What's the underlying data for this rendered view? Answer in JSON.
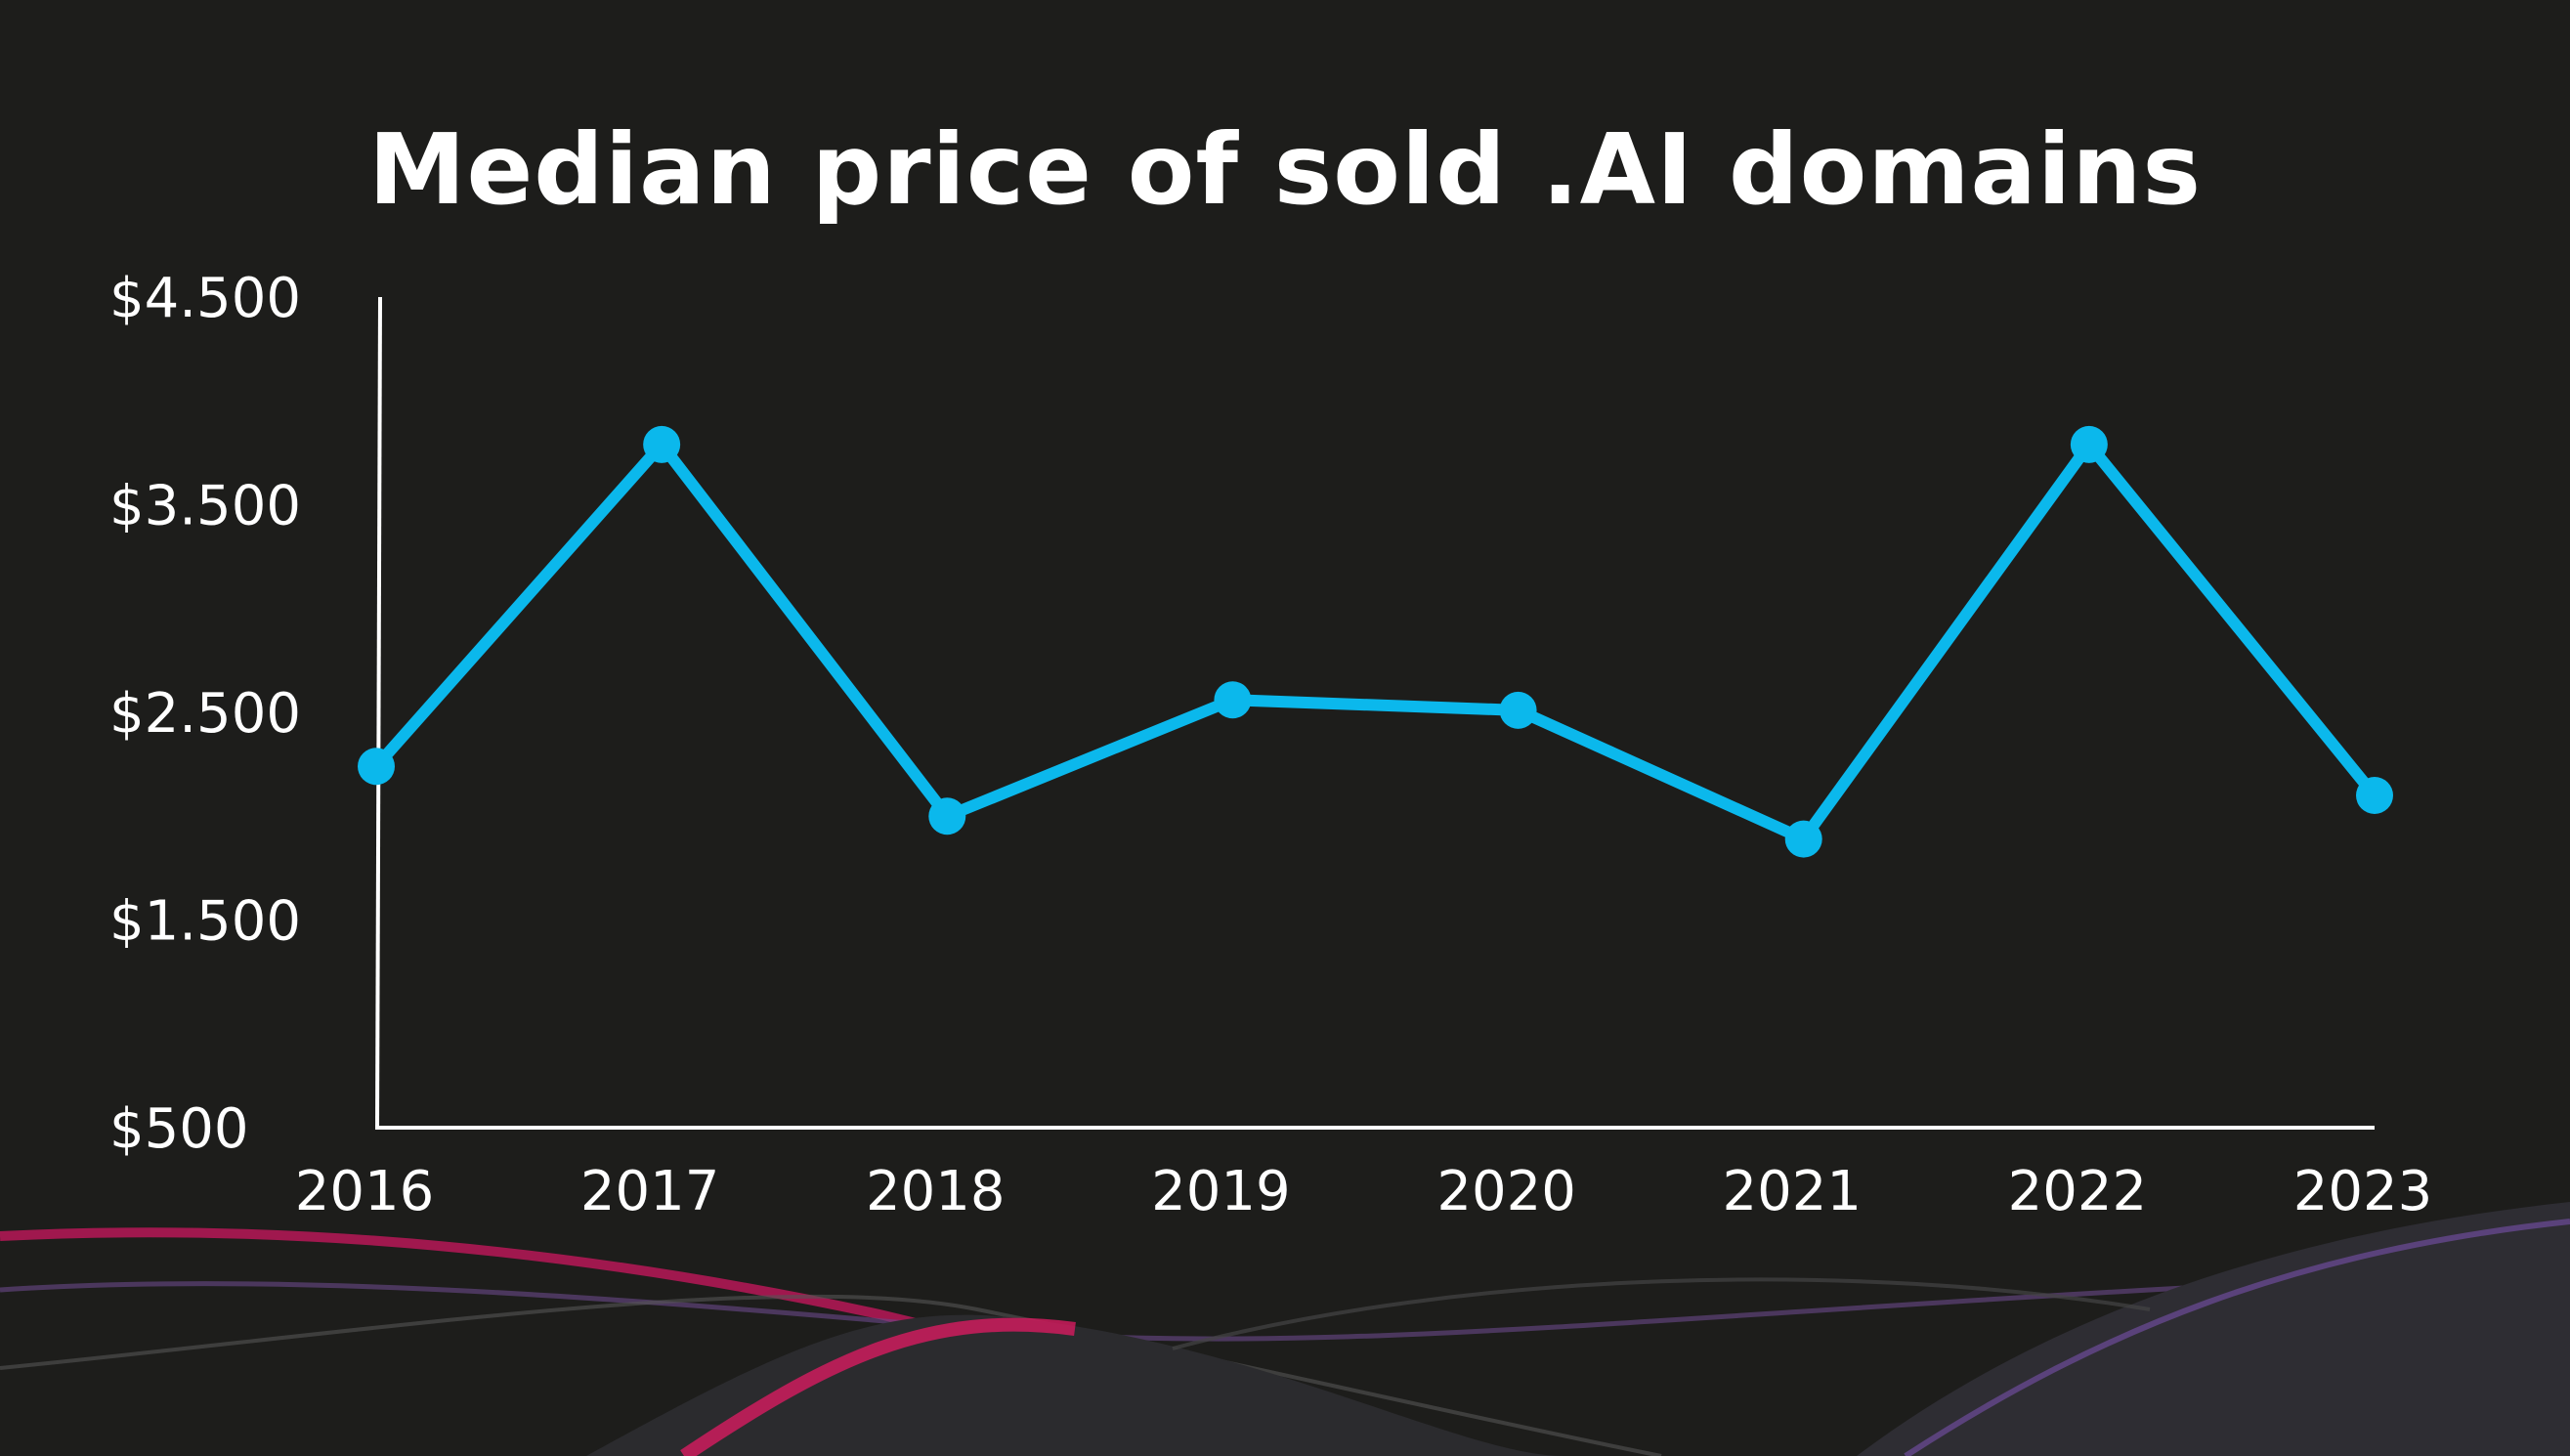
{
  "chart_data": {
    "type": "line",
    "title": "Median price of sold .AI domains",
    "categories": [
      "2016",
      "2017",
      "2018",
      "2019",
      "2020",
      "2021",
      "2022",
      "2023"
    ],
    "values": [
      2240,
      3790,
      2000,
      2560,
      2510,
      1890,
      3790,
      2100
    ],
    "y_ticks": [
      500,
      1500,
      2500,
      3500,
      4500
    ],
    "y_tick_labels": [
      "$500",
      "$1.500",
      "$2.500",
      "$3.500",
      "$4.500"
    ],
    "ylim": [
      500,
      4500
    ],
    "xlabel": "",
    "ylabel": "",
    "grid": false,
    "line_color": "#0bb8ec",
    "axis_color": "#ffffff",
    "background": "#1d1d1b"
  }
}
